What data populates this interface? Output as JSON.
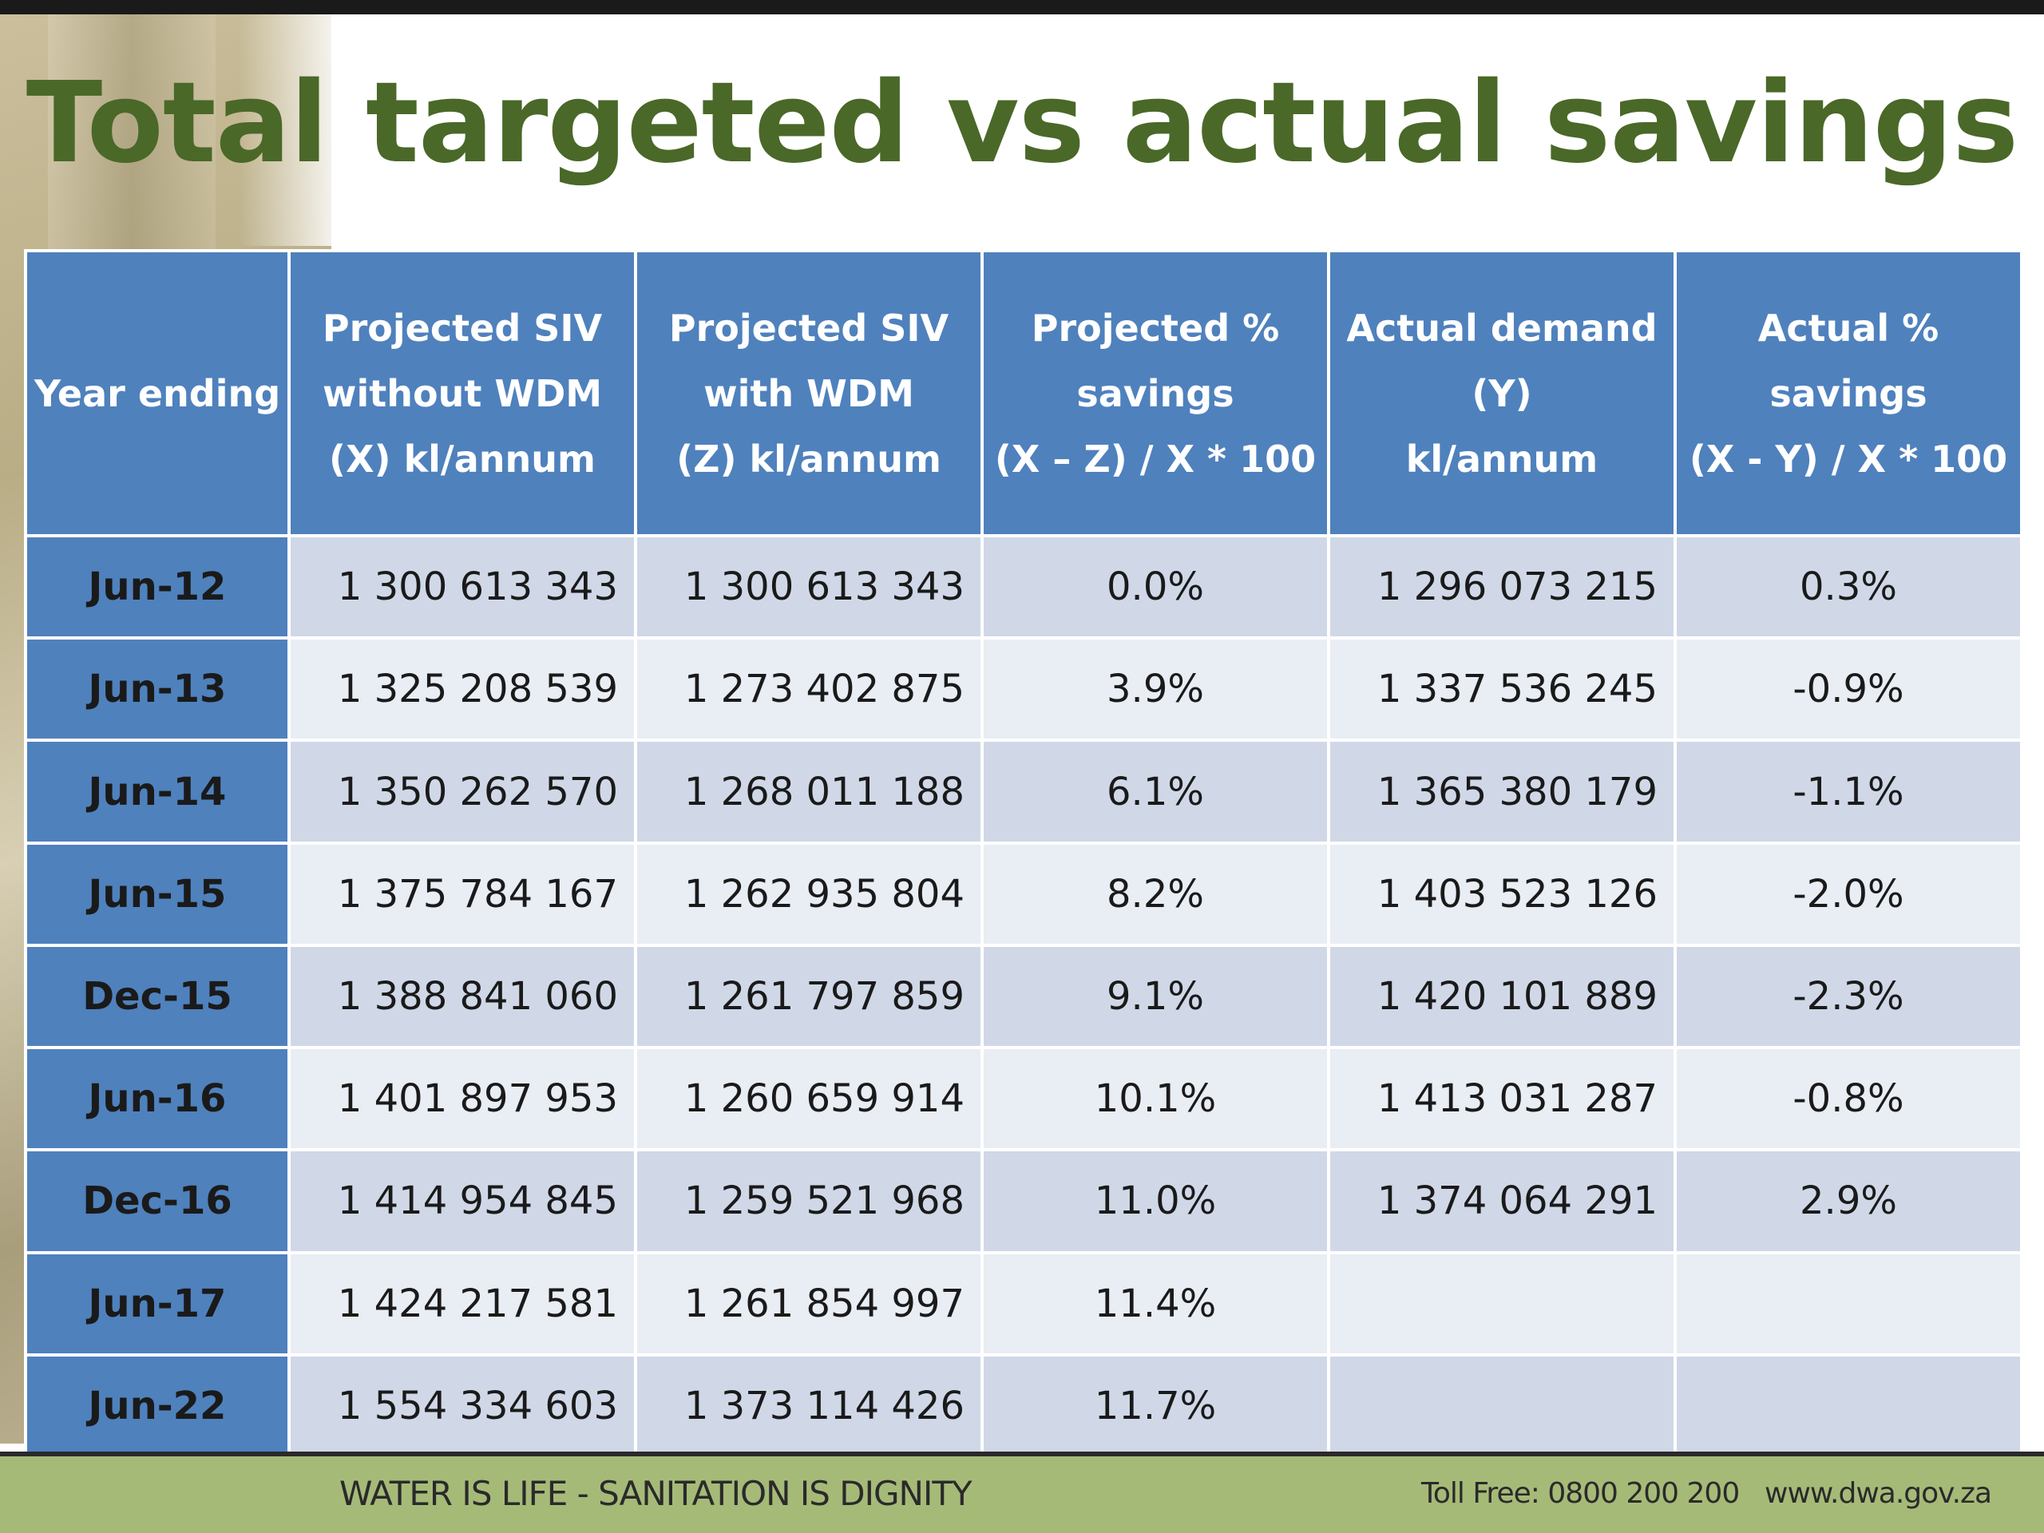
{
  "slide": {
    "title": "Total targeted vs actual savings"
  },
  "table": {
    "headers": [
      [
        "Year ending"
      ],
      [
        "Projected SIV",
        "without WDM",
        "(X) kl/annum"
      ],
      [
        "Projected SIV",
        "with WDM",
        "(Z) kl/annum"
      ],
      [
        "Projected %",
        "savings",
        "(X – Z) / X * 100"
      ],
      [
        "Actual demand",
        "(Y)",
        "kl/annum"
      ],
      [
        "Actual % savings",
        "(X - Y) / X * 100"
      ]
    ],
    "rows": [
      [
        "Jun-12",
        "1 300 613 343",
        "1 300 613 343",
        "0.0%",
        "1 296 073 215",
        "0.3%"
      ],
      [
        "Jun-13",
        "1 325 208 539",
        "1 273 402 875",
        "3.9%",
        "1 337 536 245",
        "-0.9%"
      ],
      [
        "Jun-14",
        "1 350 262 570",
        "1 268 011 188",
        "6.1%",
        "1 365 380 179",
        "-1.1%"
      ],
      [
        "Jun-15",
        "1 375 784 167",
        "1 262 935 804",
        "8.2%",
        "1 403 523 126",
        "-2.0%"
      ],
      [
        "Dec-15",
        "1 388 841 060",
        "1 261 797 859",
        "9.1%",
        "1 420 101 889",
        "-2.3%"
      ],
      [
        "Jun-16",
        "1 401 897 953",
        "1 260 659 914",
        "10.1%",
        "1 413 031 287",
        "-0.8%"
      ],
      [
        "Dec-16",
        "1 414 954 845",
        "1 259 521 968",
        "11.0%",
        "1 374 064 291",
        "2.9%"
      ],
      [
        "Jun-17",
        "1 424 217 581",
        "1 261 854 997",
        "11.4%",
        "",
        ""
      ],
      [
        "Jun-22",
        "1 554 334 603",
        "1 373 114 426",
        "11.7%",
        "",
        ""
      ]
    ]
  },
  "footer": {
    "slogan": "WATER IS LIFE - SANITATION IS DIGNITY",
    "toll_free": "Toll Free: 0800 200 200",
    "website": "www.dwa.gov.za"
  },
  "colors": {
    "title": "#4a6828",
    "header_bg": "#4f81bd",
    "row_dark": "#d0d8e8",
    "row_light": "#e9edf4",
    "footer_bg": "#a6ba78"
  }
}
